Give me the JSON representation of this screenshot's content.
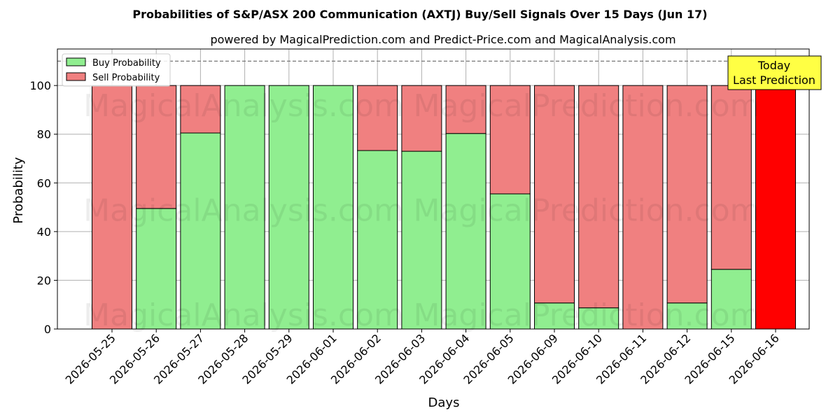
{
  "chart_data": {
    "type": "bar",
    "stacked": true,
    "title": "Probabilities of S&P/ASX 200 Communication (AXTJ) Buy/Sell Signals Over 15 Days (Jun 17)",
    "subtitle": "powered by MagicalPrediction.com and Predict-Price.com and MagicalAnalysis.com",
    "xlabel": "Days",
    "ylabel": "Probability",
    "ylim": [
      0,
      115
    ],
    "yticks": [
      "0",
      "20",
      "40",
      "60",
      "80",
      "100"
    ],
    "grid": true,
    "legend_position": "top-left",
    "reference_line": {
      "y": 110,
      "style": "dashed"
    },
    "categories": [
      "2026-05-25",
      "2026-05-26",
      "2026-05-27",
      "2026-05-28",
      "2026-05-29",
      "2026-06-01",
      "2026-06-02",
      "2026-06-03",
      "2026-06-04",
      "2026-06-05",
      "2026-06-09",
      "2026-06-10",
      "2026-06-11",
      "2026-06-12",
      "2026-06-15",
      "2026-06-16"
    ],
    "series": [
      {
        "name": "Buy Probability",
        "color": "#90ee90",
        "values": [
          0,
          49.5,
          80.5,
          100,
          100,
          100,
          73.3,
          73,
          80.3,
          55.5,
          10.7,
          8.7,
          0,
          10.7,
          24.5,
          0
        ]
      },
      {
        "name": "Sell Probability",
        "color": "#f08080",
        "values": [
          100,
          50.5,
          19.5,
          0,
          0,
          0,
          26.7,
          27,
          19.7,
          44.5,
          89.3,
          91.3,
          100,
          89.3,
          75.5,
          100
        ]
      }
    ],
    "highlight": {
      "category": "2026-06-16",
      "color": "#ff0000"
    },
    "annotation": {
      "lines": [
        "Today",
        "Last Prediction"
      ],
      "background": "#ffff44"
    },
    "watermarks": [
      "MagicalAnalysis.com",
      "MagicalPrediction.com"
    ]
  }
}
